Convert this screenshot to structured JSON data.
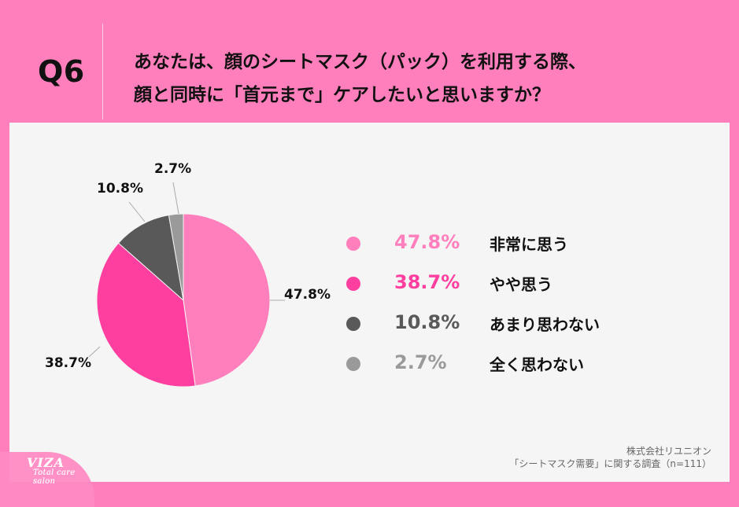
{
  "header": {
    "question_number": "Q6",
    "question_lines": [
      "あなたは、顔のシートマスク（パック）を利用する際、",
      "顔と同時に「首元まで」ケアしたいと思いますか？"
    ]
  },
  "chart_data": {
    "type": "pie",
    "values": [
      47.8,
      38.7,
      10.8,
      2.7
    ],
    "categories": [
      "非常に思う",
      "やや思う",
      "あまり思わない",
      "全く思わない"
    ],
    "labels": [
      "47.8%",
      "38.7%",
      "10.8%",
      "2.7%"
    ],
    "colors": [
      "#ff7fbd",
      "#ff3f9f",
      "#595959",
      "#9a9a9a"
    ]
  },
  "legend": {
    "items": [
      {
        "pct": "47.8%",
        "label": "非常に思う",
        "color": "#ff7fbd"
      },
      {
        "pct": "38.7%",
        "label": "やや思う",
        "color": "#ff3f9f"
      },
      {
        "pct": "10.8%",
        "label": "あまり思わない",
        "color": "#595959"
      },
      {
        "pct": "2.7%",
        "label": "全く思わない",
        "color": "#9a9a9a"
      }
    ]
  },
  "footer": {
    "company": "株式会社リユニオン",
    "survey": "「シートマスク需要」に関する調査（n=111）"
  },
  "logo": {
    "main": "VIZA",
    "sub": "Total care salon"
  }
}
